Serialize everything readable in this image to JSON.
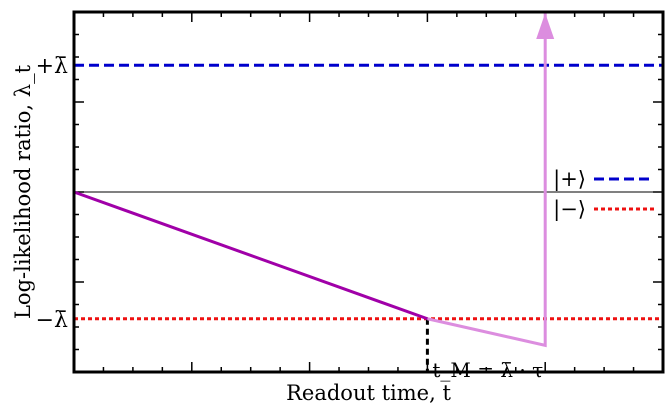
{
  "chart_data": {
    "type": "line",
    "xlabel": "Readout time, t",
    "ylabel": "Log-likelihood ratio, λ_t",
    "ytick_labels": [
      "+λ̄",
      "−λ̄"
    ],
    "legend": {
      "placement": "center-right",
      "entries": [
        {
          "label": "|+⟩",
          "color": "#0000cc",
          "style": "dashed"
        },
        {
          "label": "|−⟩",
          "color": "#ee1111",
          "style": "dotted"
        }
      ]
    },
    "thresholds": [
      {
        "label": "+λ̄",
        "value": 1.0,
        "color": "#0000cc",
        "style": "dashed"
      },
      {
        "label": "−λ̄",
        "value": -1.0,
        "color": "#ee1111",
        "style": "dotted"
      }
    ],
    "annotation": "t_M = λ̄ · τ",
    "xlim": [
      0,
      1
    ],
    "ylim": [
      -1.42,
      1.42
    ],
    "series": [
      {
        "color": "#a000a8",
        "points": [
          [
            0,
            0
          ],
          [
            0.6,
            -1.0
          ]
        ]
      },
      {
        "color": "#dc8ddf",
        "points": [
          [
            0.6,
            -1.0
          ],
          [
            0.8,
            -1.21
          ],
          [
            0.8,
            1.42
          ]
        ]
      }
    ],
    "measurement_time": 0.6,
    "arrow_x": 0.8,
    "x_minor_ticks": 20,
    "x_major_every": 4,
    "y_minor_ticks": 16,
    "y_major_every": 4
  }
}
